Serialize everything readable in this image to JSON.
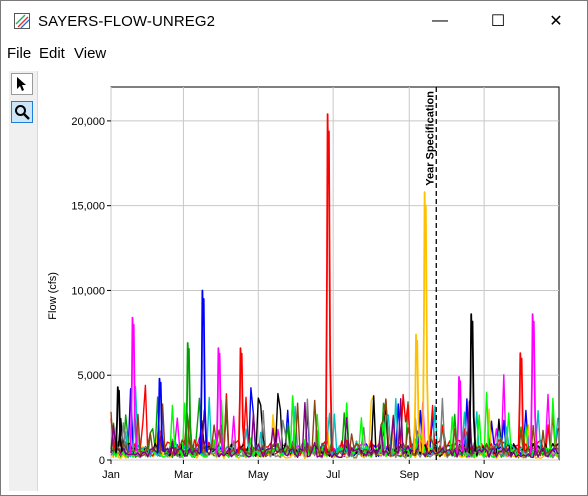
{
  "window": {
    "title": "SAYERS-FLOW-UNREG2",
    "controls": {
      "minimize": "—",
      "maximize": "☐",
      "close": "✕"
    }
  },
  "menu": {
    "items": [
      "File",
      "Edit",
      "View"
    ]
  },
  "toolbar": {
    "tools": [
      "pointer-tool",
      "zoom-tool"
    ]
  },
  "chart_data": {
    "type": "line",
    "ylabel": "Flow (cfs)",
    "xlabel": "",
    "yticks": [
      "0",
      "5,000",
      "10,000",
      "15,000",
      "20,000"
    ],
    "ytick_values": [
      0,
      5000,
      10000,
      15000,
      20000
    ],
    "xticks": [
      "Jan",
      "Mar",
      "May",
      "Jul",
      "Sep",
      "Nov"
    ],
    "xtick_days": [
      0,
      59,
      120,
      181,
      243,
      304
    ],
    "xlim_days": [
      0,
      365
    ],
    "ylim": [
      0,
      22000
    ],
    "grid": true,
    "annotation": {
      "text": "Year Specification",
      "day": 265
    },
    "series_colors": [
      "#ff00ff",
      "#0000ff",
      "#00a000",
      "#ffc000",
      "#ff0000",
      "#000000",
      "#00c0c0",
      "#808080",
      "#00ff00",
      "#8b4513",
      "#800080"
    ],
    "peaks": [
      {
        "color": "#ff0000",
        "day": 177,
        "value": 20400
      },
      {
        "color": "#ffc000",
        "day": 256,
        "value": 15800
      },
      {
        "color": "#0000ff",
        "day": 75,
        "value": 10000
      },
      {
        "color": "#ff00ff",
        "day": 18,
        "value": 8400
      },
      {
        "color": "#000000",
        "day": 294,
        "value": 8600
      },
      {
        "color": "#ff00ff",
        "day": 344,
        "value": 8600
      },
      {
        "color": "#00a000",
        "day": 63,
        "value": 6900
      },
      {
        "color": "#ff0000",
        "day": 106,
        "value": 6600
      },
      {
        "color": "#ff0000",
        "day": 334,
        "value": 6300
      },
      {
        "color": "#ffc000",
        "day": 249,
        "value": 7400
      },
      {
        "color": "#ff00ff",
        "day": 88,
        "value": 6600
      },
      {
        "color": "#0000ff",
        "day": 40,
        "value": 4800
      },
      {
        "color": "#ff00ff",
        "day": 284,
        "value": 4900
      },
      {
        "color": "#000000",
        "day": 6,
        "value": 4300
      }
    ]
  }
}
